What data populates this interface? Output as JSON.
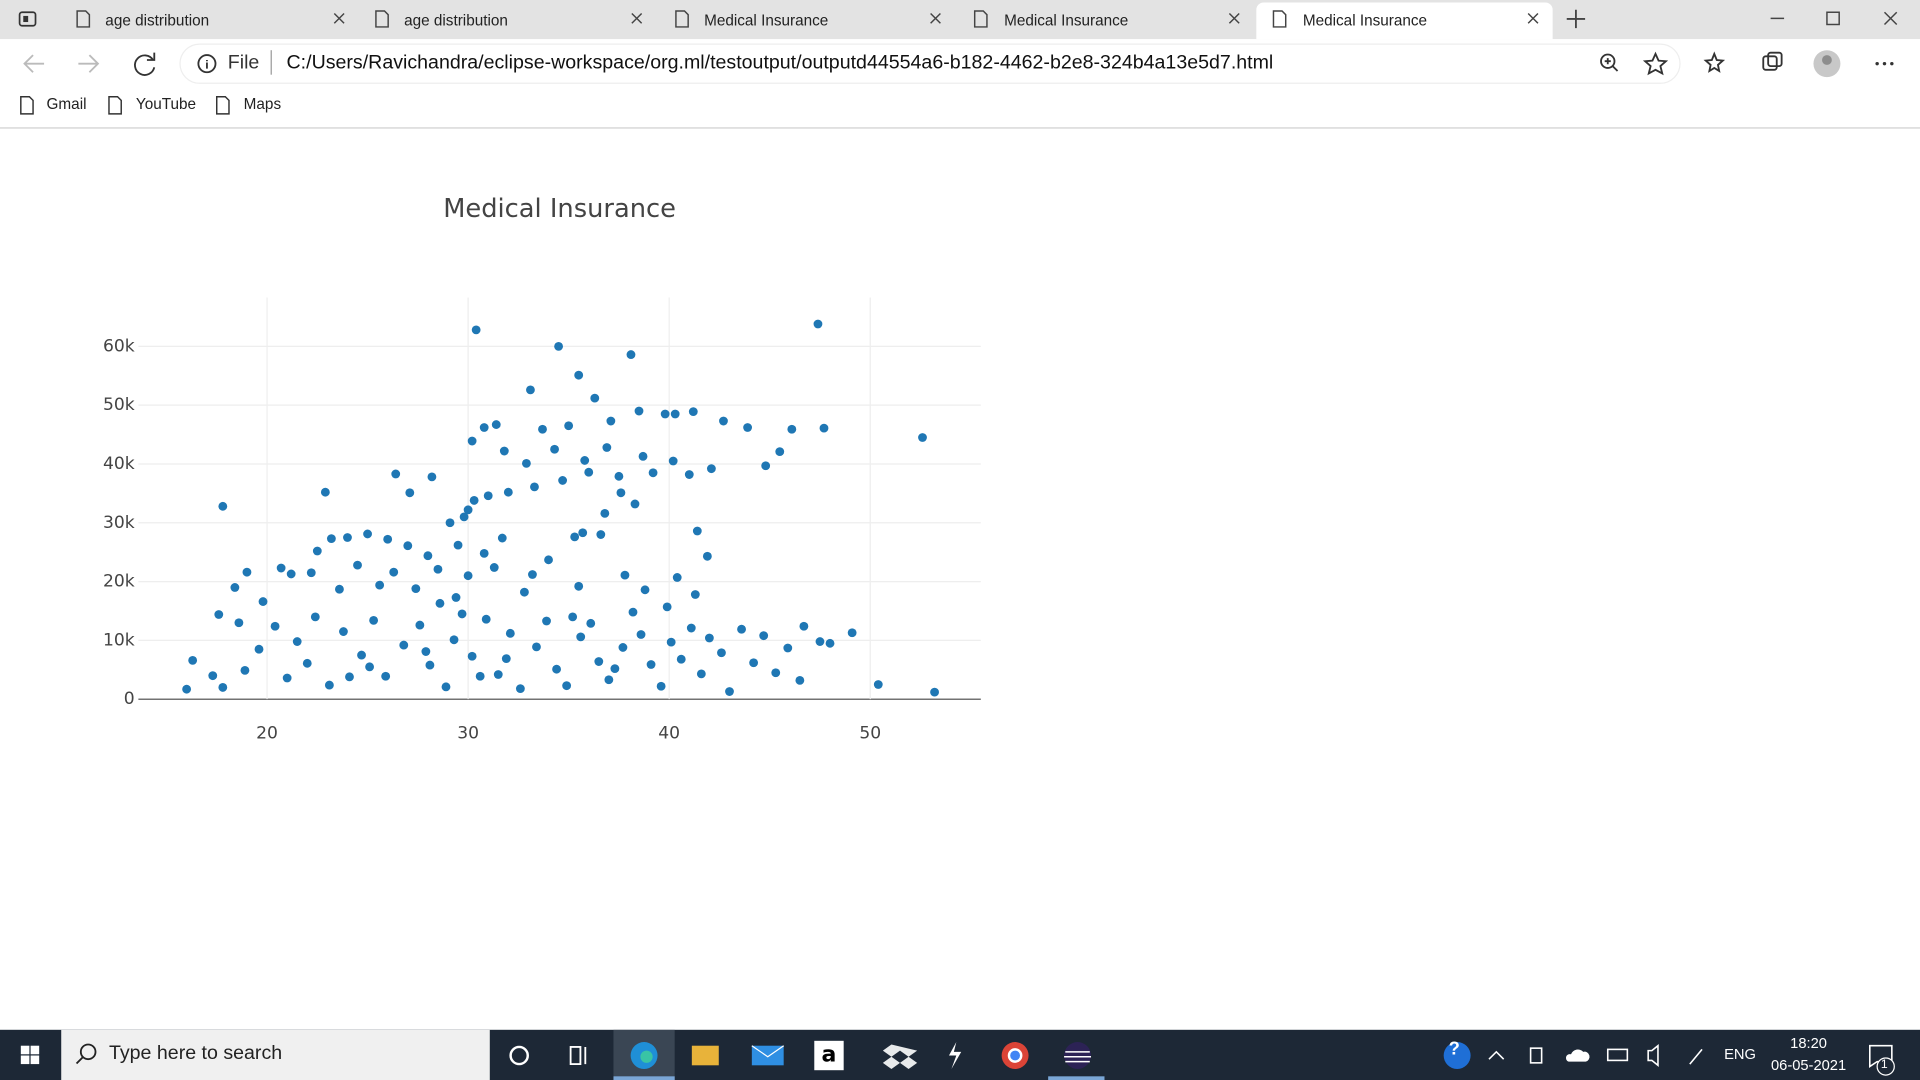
{
  "browser": {
    "tabs": [
      "age distribution",
      "age distribution",
      "Medical Insurance",
      "Medical Insurance",
      "Medical Insurance"
    ],
    "address_prefix": "File",
    "url": "C:/Users/Ravichandra/eclipse-workspace/org.ml/testoutput/outputd44554a6-b182-4462-b2e8-324b4a13e5d7.html",
    "bookmarks": [
      "Gmail",
      "YouTube",
      "Maps"
    ]
  },
  "chart_data": {
    "type": "scatter",
    "title": "Medical Insurance",
    "color": "#1f77b4",
    "grid": true,
    "xlim": [
      13.6,
      55.5
    ],
    "xticks": [
      20,
      30,
      40,
      50
    ],
    "ylim": [
      0,
      68300
    ],
    "yticks": [
      0,
      {
        "value": 10000,
        "label": "10k"
      },
      {
        "value": 20000,
        "label": "20k"
      },
      {
        "value": 30000,
        "label": "30k"
      },
      {
        "value": 40000,
        "label": "40k"
      },
      {
        "value": 50000,
        "label": "50k"
      },
      {
        "value": 60000,
        "label": "60k"
      }
    ],
    "x": [
      30.4,
      34.5,
      47.4,
      38.1,
      35.5,
      33.1,
      36.3,
      52.6,
      47.7,
      46.1,
      43.9,
      42.7,
      41.2,
      40.3,
      39.8,
      38.5,
      37.1,
      35.0,
      33.7,
      31.4,
      30.8,
      30.2,
      31.8,
      32.9,
      34.3,
      35.8,
      36.9,
      38.7,
      40.2,
      45.5,
      44.8,
      42.1,
      41.0,
      39.2,
      37.5,
      36.0,
      34.7,
      33.3,
      32.0,
      31.0,
      30.3,
      30.0,
      29.8,
      37.6,
      38.3,
      36.8,
      35.7,
      36.6,
      35.3,
      41.4,
      41.9,
      34.0,
      31.7,
      29.1,
      28.2,
      26.4,
      22.9,
      27.1,
      17.8,
      29.5,
      28.0,
      27.0,
      26.0,
      25.0,
      24.0,
      23.2,
      22.5,
      24.5,
      26.3,
      28.5,
      30.0,
      31.3,
      33.2,
      35.5,
      37.8,
      40.4,
      38.8,
      32.8,
      29.4,
      27.4,
      25.6,
      23.6,
      22.2,
      20.7,
      19.0,
      18.4,
      19.8,
      21.2,
      17.6,
      18.6,
      16.3,
      16.0,
      17.3,
      17.8,
      18.9,
      19.6,
      20.4,
      21.5,
      21.0,
      22.4,
      22.0,
      23.1,
      23.8,
      24.7,
      25.3,
      25.9,
      26.8,
      27.6,
      28.1,
      28.9,
      29.3,
      30.2,
      30.9,
      31.5,
      32.1,
      32.6,
      33.4,
      33.9,
      34.4,
      34.9,
      35.6,
      36.1,
      36.5,
      37.0,
      37.7,
      38.2,
      38.6,
      39.1,
      39.6,
      40.1,
      40.6,
      41.1,
      41.6,
      42.0,
      42.6,
      43.0,
      43.6,
      44.2,
      44.7,
      45.3,
      45.9,
      46.5,
      46.7,
      47.5,
      48.0,
      49.1,
      50.4,
      53.2,
      30.6,
      31.9,
      27.9,
      25.1,
      29.7,
      24.1,
      35.2,
      37.3,
      39.9,
      41.3,
      28.6,
      30.8
    ],
    "values": [
      62800,
      60000,
      63800,
      58600,
      55100,
      52600,
      51200,
      44500,
      46100,
      45900,
      46200,
      47300,
      48900,
      48500,
      48500,
      49000,
      47300,
      46500,
      45900,
      46700,
      46200,
      43900,
      42200,
      40100,
      42500,
      40600,
      42800,
      41300,
      40500,
      42100,
      39700,
      39200,
      38200,
      38500,
      37900,
      38600,
      37200,
      36100,
      35200,
      34600,
      33800,
      32200,
      31000,
      35100,
      33200,
      31600,
      28300,
      28000,
      27600,
      28600,
      24300,
      23700,
      27400,
      30000,
      37800,
      38300,
      35200,
      35100,
      32800,
      26200,
      24400,
      26100,
      27200,
      28100,
      27500,
      27300,
      25200,
      22800,
      21600,
      22100,
      21000,
      22400,
      21200,
      19200,
      21100,
      20700,
      18600,
      18200,
      17300,
      18800,
      19400,
      18700,
      21500,
      22300,
      21600,
      19000,
      16600,
      21300,
      14400,
      13000,
      6600,
      1700,
      4000,
      2000,
      4900,
      8500,
      12400,
      9800,
      3600,
      14000,
      6100,
      2400,
      11500,
      7500,
      13400,
      3900,
      9200,
      12600,
      5800,
      2100,
      10100,
      7300,
      13600,
      4200,
      11200,
      1800,
      8900,
      13300,
      5100,
      2300,
      10600,
      12900,
      6400,
      3300,
      8800,
      14800,
      11000,
      5900,
      2200,
      9700,
      6800,
      12100,
      4300,
      10400,
      7900,
      1300,
      11900,
      6200,
      10800,
      4500,
      8700,
      3200,
      12400,
      9800,
      9500,
      11300,
      2500,
      1200,
      3900,
      6900,
      8100,
      5500,
      14500,
      3800,
      14000,
      5200,
      15700,
      17800,
      16300,
      24800
    ]
  },
  "taskbar": {
    "search": "Type here to search",
    "language": "ENG",
    "time": "18:20",
    "date": "06-05-2021",
    "notifications": "1"
  }
}
